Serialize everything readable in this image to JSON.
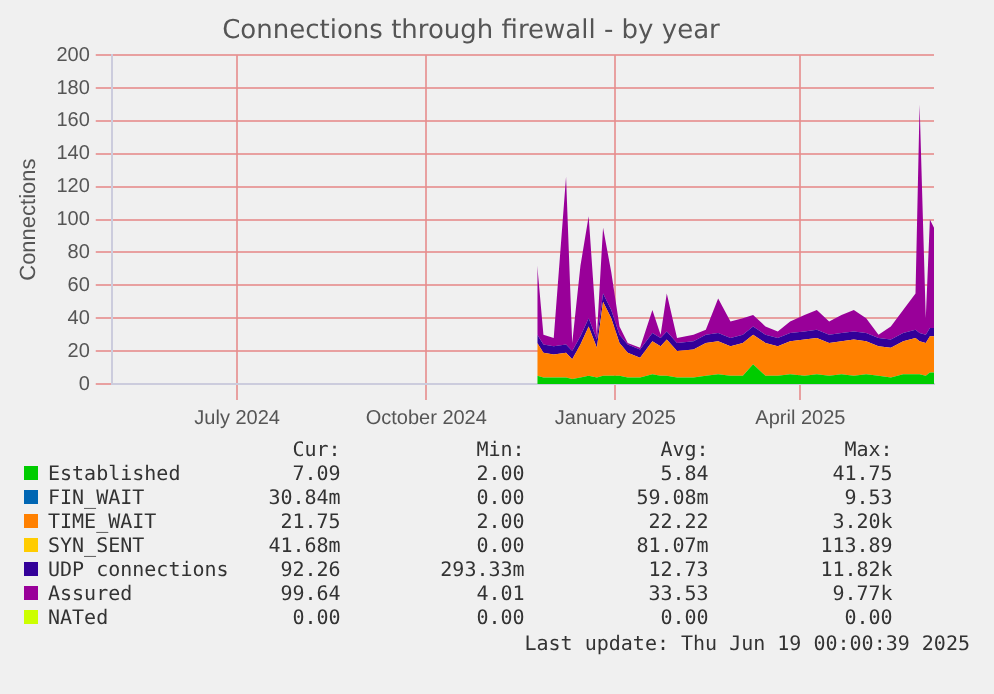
{
  "chart_data": {
    "type": "area",
    "title": "Connections through firewall - by year",
    "ylabel": "Connections",
    "x": [
      "2024-12-08",
      "2024-12-11",
      "2024-12-16",
      "2024-12-22",
      "2024-12-25",
      "2024-12-29",
      "2025-01-02",
      "2025-01-06",
      "2025-01-09",
      "2025-01-13",
      "2025-01-17",
      "2025-01-21",
      "2025-01-27",
      "2025-02-02",
      "2025-02-06",
      "2025-02-09",
      "2025-02-14",
      "2025-02-22",
      "2025-02-28",
      "2025-03-06",
      "2025-03-12",
      "2025-03-18",
      "2025-03-23",
      "2025-03-29",
      "2025-04-04",
      "2025-04-10",
      "2025-04-17",
      "2025-04-23",
      "2025-04-29",
      "2025-05-05",
      "2025-05-11",
      "2025-05-17",
      "2025-05-23",
      "2025-05-29",
      "2025-06-04",
      "2025-06-10",
      "2025-06-12",
      "2025-06-15",
      "2025-06-17",
      "2025-06-19"
    ],
    "stacked": true,
    "series": [
      {
        "name": "Established",
        "color": "#00cc00",
        "values": [
          5,
          4,
          4,
          4,
          3,
          4,
          5,
          4,
          5,
          5,
          5,
          4,
          4,
          6,
          5,
          5,
          4,
          4,
          5,
          6,
          5,
          5,
          12,
          5,
          5,
          6,
          5,
          6,
          5,
          6,
          5,
          6,
          5,
          4,
          6,
          6,
          6,
          5,
          7,
          7
        ]
      },
      {
        "name": "FIN_WAIT",
        "color": "#0066b3",
        "values": [
          null,
          null,
          null,
          null,
          null,
          null,
          null,
          null,
          null,
          null,
          null,
          null,
          null,
          null,
          null,
          null,
          null,
          null,
          null,
          null,
          null,
          null,
          null,
          null,
          null,
          null,
          null,
          null,
          null,
          null,
          null,
          null,
          null,
          null,
          null,
          null,
          null,
          null,
          null,
          null
        ]
      },
      {
        "name": "TIME_WAIT",
        "color": "#ff8000",
        "values": [
          20,
          15,
          14,
          15,
          12,
          20,
          30,
          18,
          45,
          35,
          20,
          15,
          12,
          20,
          18,
          22,
          16,
          17,
          20,
          20,
          18,
          20,
          18,
          20,
          18,
          20,
          22,
          22,
          20,
          20,
          22,
          20,
          18,
          18,
          20,
          22,
          20,
          20,
          22,
          22
        ]
      },
      {
        "name": "SYN_SENT",
        "color": "#ffcc00",
        "values": [
          null,
          null,
          null,
          null,
          null,
          null,
          null,
          null,
          null,
          null,
          null,
          null,
          null,
          null,
          null,
          null,
          null,
          null,
          null,
          null,
          null,
          null,
          null,
          null,
          null,
          null,
          null,
          null,
          null,
          null,
          null,
          null,
          null,
          null,
          null,
          null,
          null,
          null,
          null,
          null
        ]
      },
      {
        "name": "UDP connections",
        "color": "#330099",
        "values": [
          5,
          5,
          5,
          5,
          5,
          5,
          5,
          5,
          5,
          5,
          5,
          5,
          5,
          5,
          5,
          5,
          5,
          5,
          5,
          5,
          5,
          5,
          5,
          5,
          5,
          5,
          5,
          5,
          5,
          5,
          5,
          5,
          5,
          5,
          5,
          5,
          5,
          5,
          5,
          5
        ]
      },
      {
        "name": "Assured",
        "color": "#990099",
        "values": [
          42,
          6,
          5,
          102,
          5,
          43,
          62,
          3,
          40,
          23,
          5,
          1,
          1,
          14,
          2,
          23,
          3,
          4,
          3,
          21,
          10,
          10,
          7,
          5,
          4,
          7,
          10,
          12,
          8,
          11,
          13,
          9,
          2,
          8,
          14,
          22,
          139,
          10,
          66,
          61
        ]
      },
      {
        "name": "NATed",
        "color": "#ccff00",
        "values": [
          null,
          null,
          null,
          null,
          null,
          null,
          null,
          null,
          null,
          null,
          null,
          null,
          null,
          null,
          null,
          null,
          null,
          null,
          null,
          null,
          null,
          null,
          null,
          null,
          null,
          null,
          null,
          null,
          null,
          null,
          null,
          null,
          null,
          null,
          null,
          null,
          null,
          null,
          null,
          null
        ]
      }
    ],
    "xlim": [
      "2024-05-15",
      "2025-06-19"
    ],
    "xticks": [
      {
        "value": "2024-07-15",
        "label": "July 2024"
      },
      {
        "value": "2024-10-15",
        "label": "October 2024"
      },
      {
        "value": "2025-01-15",
        "label": "January 2025"
      },
      {
        "value": "2025-04-15",
        "label": "April 2025"
      }
    ],
    "ylim": [
      0,
      200
    ],
    "yticks": [
      0,
      20,
      40,
      60,
      80,
      100,
      120,
      140,
      160,
      180,
      200
    ],
    "grid": true,
    "legend": "bottom",
    "annotations": [
      "Cur:",
      "Min:",
      "Avg:",
      "Max:",
      "7.09",
      "2.00",
      "5.84",
      "41.75",
      "30.84m",
      "0.00",
      "59.08m",
      "9.53",
      "21.75",
      "2.00",
      "22.22",
      "3.20k",
      "41.68m",
      "0.00",
      "81.07m",
      "113.89",
      "92.26",
      "293.33m",
      "12.73",
      "11.82k",
      "99.64",
      "4.01",
      "33.53",
      "9.77k",
      "0.00",
      "0.00",
      "0.00",
      "0.00",
      "Last update: Thu Jun 19 00:00:39 2025"
    ]
  }
}
